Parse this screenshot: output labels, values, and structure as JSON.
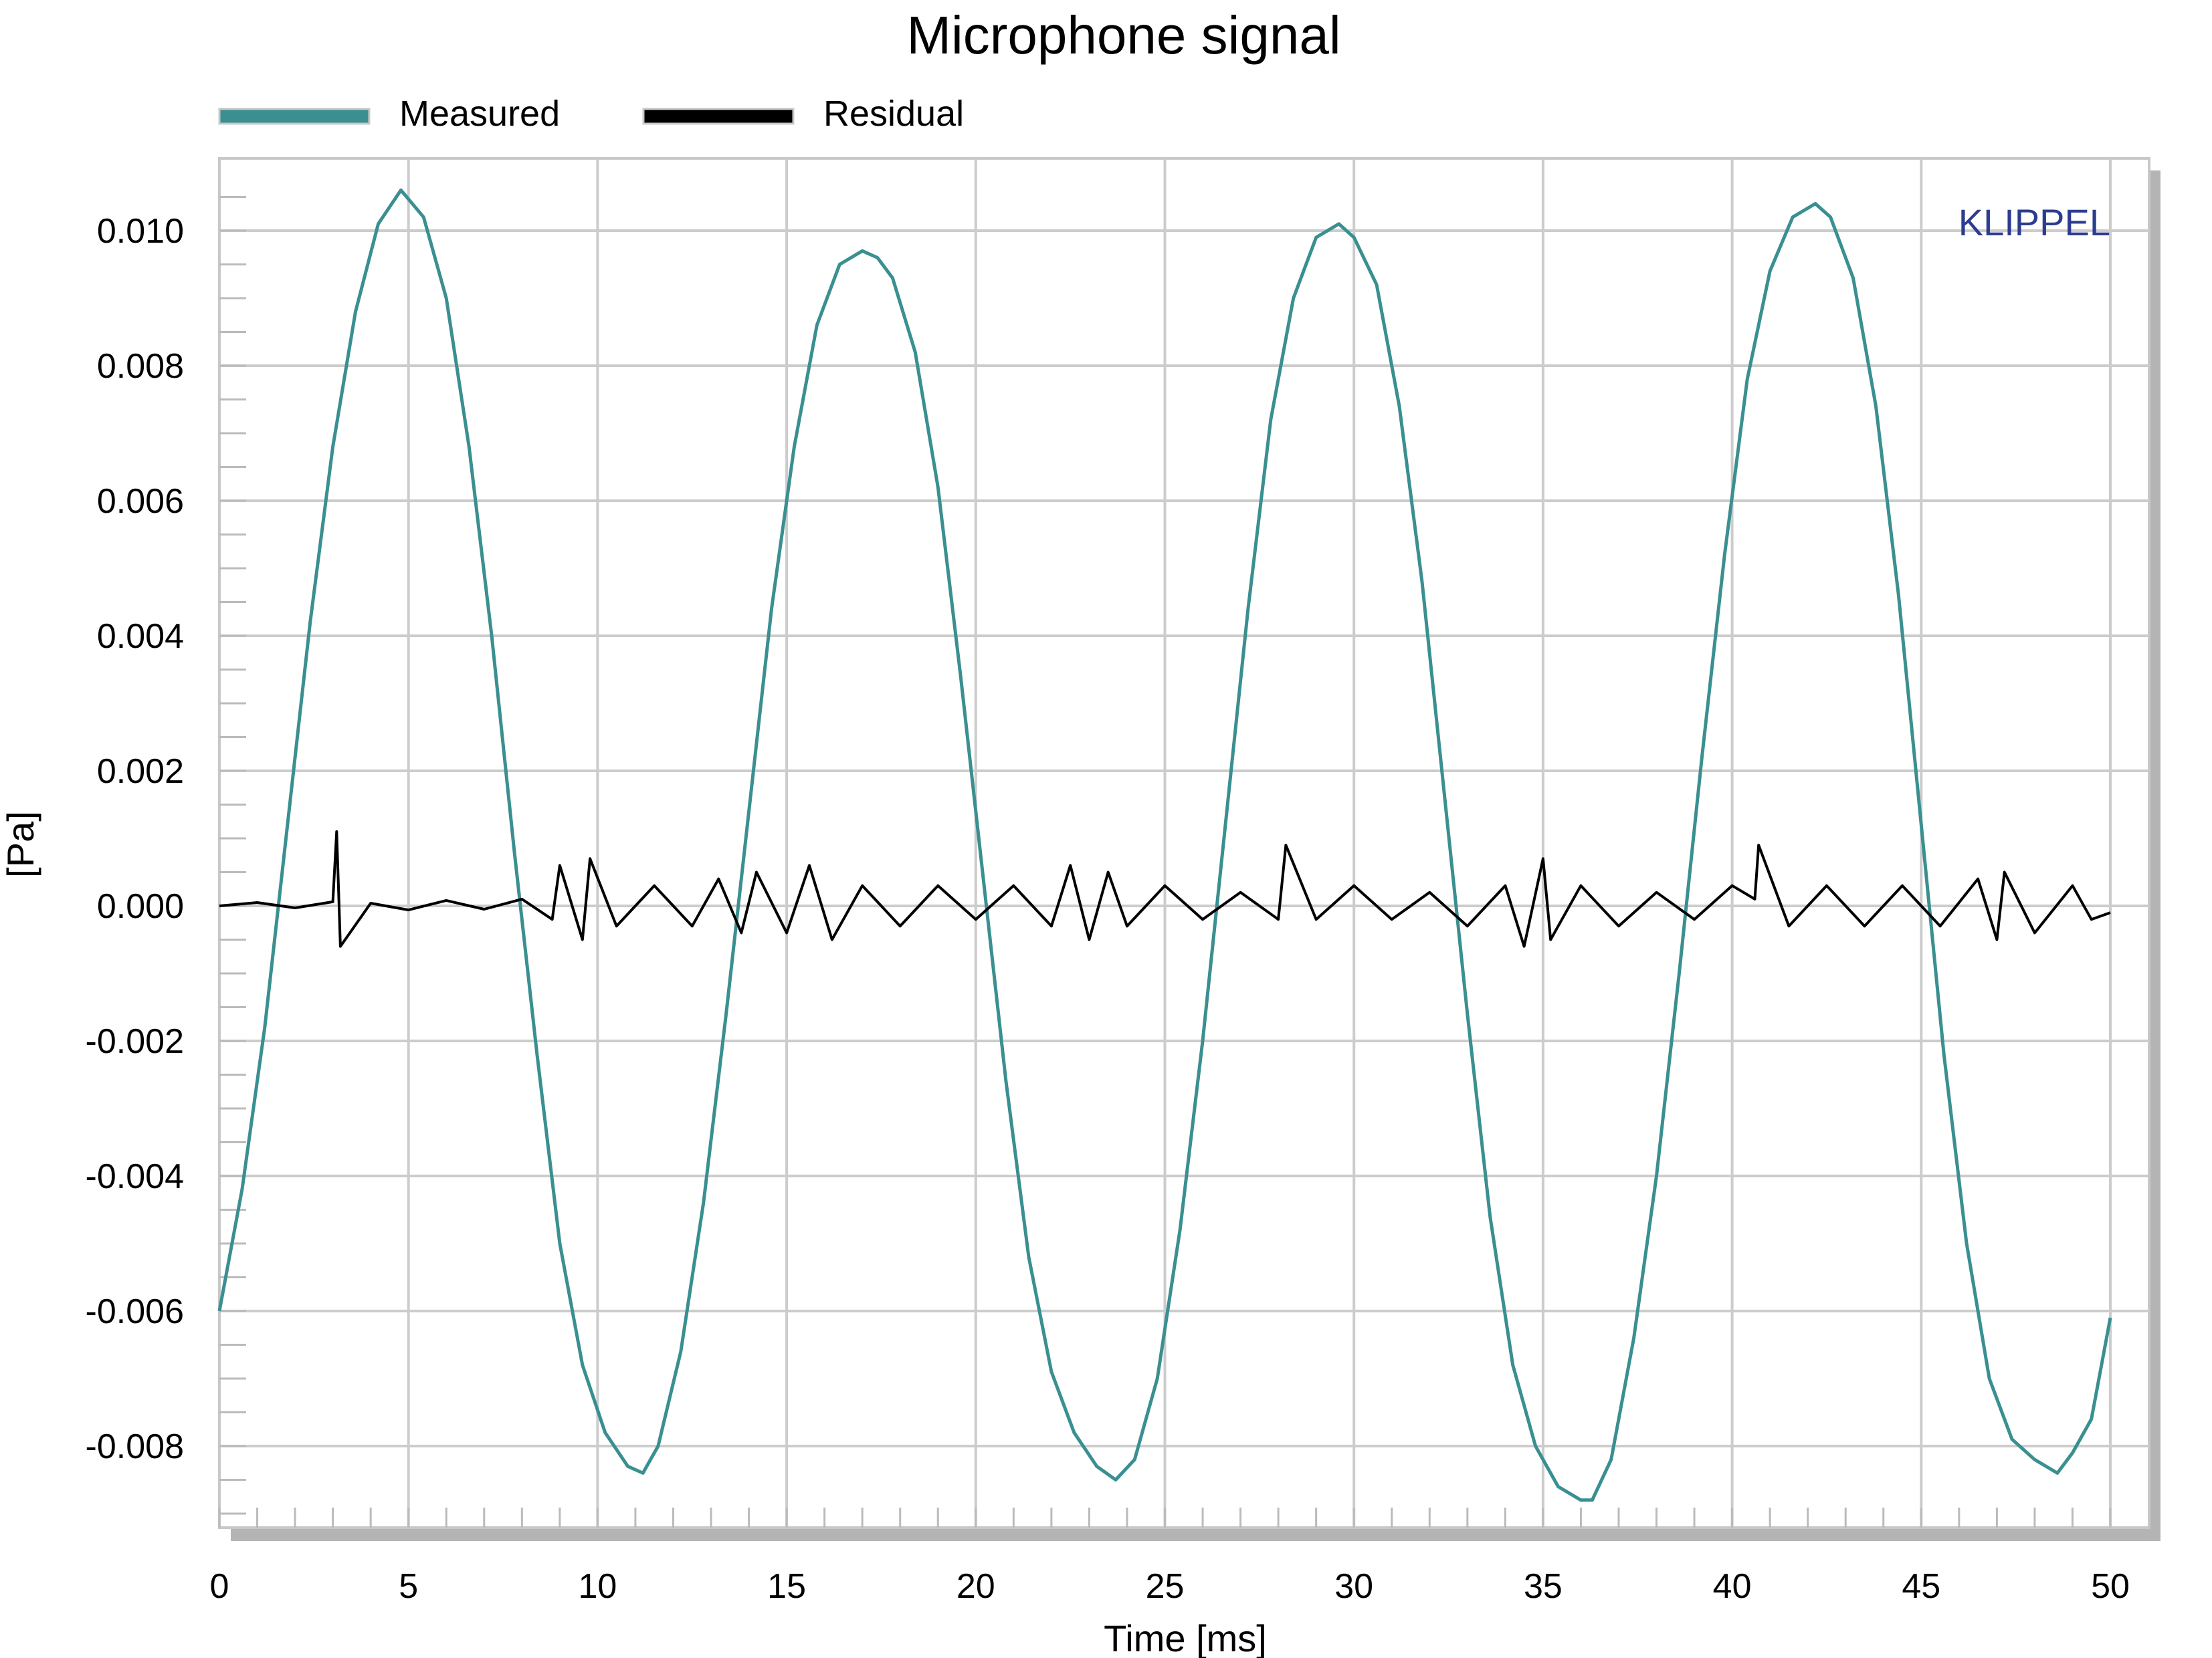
{
  "chart_data": {
    "type": "line",
    "title": "Microphone signal",
    "xlabel": "Time [ms]",
    "ylabel": "[Pa]",
    "xlim": [
      0,
      50
    ],
    "ylim": [
      -0.0093,
      0.011
    ],
    "xticks": [
      0,
      5,
      10,
      15,
      20,
      25,
      30,
      35,
      40,
      45,
      50
    ],
    "xtick_labels": [
      "0",
      "5",
      "10",
      "15",
      "20",
      "25",
      "30",
      "35",
      "40",
      "45",
      "50"
    ],
    "yticks": [
      -0.008,
      -0.006,
      -0.004,
      -0.002,
      0,
      0.002,
      0.004,
      0.006,
      0.008,
      0.01
    ],
    "ytick_labels": [
      "-0.008",
      "-0.006",
      "-0.004",
      "-0.002",
      "0.000",
      "0.002",
      "0.004",
      "0.006",
      "0.008",
      "0.010"
    ],
    "grid": true,
    "legend_position": "top-left, above plot",
    "watermark": "KLIPPEL",
    "series": [
      {
        "name": "Measured",
        "color": "#3a8f91",
        "x": [
          0,
          0.6,
          1.2,
          1.8,
          2.4,
          3.0,
          3.6,
          4.2,
          4.8,
          5.4,
          6.0,
          6.6,
          7.2,
          7.8,
          8.4,
          9.0,
          9.6,
          10.2,
          10.8,
          11.2,
          11.6,
          12.2,
          12.8,
          13.4,
          14.0,
          14.6,
          15.2,
          15.8,
          16.4,
          17.0,
          17.4,
          17.8,
          18.4,
          19.0,
          19.6,
          20.2,
          20.8,
          21.4,
          22.0,
          22.6,
          23.2,
          23.7,
          24.2,
          24.8,
          25.4,
          26.0,
          26.6,
          27.2,
          27.8,
          28.4,
          29.0,
          29.6,
          30.0,
          30.6,
          31.2,
          31.8,
          32.4,
          33.0,
          33.6,
          34.2,
          34.8,
          35.4,
          36.0,
          36.3,
          36.8,
          37.4,
          38.0,
          38.6,
          39.2,
          39.8,
          40.4,
          41.0,
          41.6,
          42.2,
          42.6,
          43.2,
          43.8,
          44.4,
          45.0,
          45.6,
          46.2,
          46.8,
          47.4,
          48.0,
          48.6,
          49.0,
          49.5,
          50.0
        ],
        "y": [
          -0.006,
          -0.0042,
          -0.0018,
          0.0012,
          0.0042,
          0.0068,
          0.0088,
          0.0101,
          0.0106,
          0.0102,
          0.009,
          0.0068,
          0.004,
          0.0008,
          -0.0022,
          -0.005,
          -0.0068,
          -0.0078,
          -0.0083,
          -0.0084,
          -0.008,
          -0.0066,
          -0.0044,
          -0.0016,
          0.0014,
          0.0044,
          0.0068,
          0.0086,
          0.0095,
          0.0097,
          0.0096,
          0.0093,
          0.0082,
          0.0062,
          0.0034,
          0.0004,
          -0.0026,
          -0.0052,
          -0.0069,
          -0.0078,
          -0.0083,
          -0.0085,
          -0.0082,
          -0.007,
          -0.0048,
          -0.002,
          0.0012,
          0.0044,
          0.0072,
          0.009,
          0.0099,
          0.0101,
          0.0099,
          0.0092,
          0.0074,
          0.0048,
          0.0016,
          -0.0016,
          -0.0046,
          -0.0068,
          -0.008,
          -0.0086,
          -0.0088,
          -0.0088,
          -0.0082,
          -0.0064,
          -0.004,
          -0.001,
          0.0022,
          0.0052,
          0.0078,
          0.0094,
          0.0102,
          0.0104,
          0.0102,
          0.0093,
          0.0074,
          0.0046,
          0.0012,
          -0.0022,
          -0.005,
          -0.007,
          -0.0079,
          -0.0082,
          -0.0084,
          -0.0081,
          -0.0076,
          -0.0061
        ]
      },
      {
        "name": "Residual",
        "color": "#000000",
        "x": [
          0,
          1,
          2,
          3,
          3.1,
          3.2,
          4,
          5,
          6,
          7,
          8,
          8.8,
          9,
          9.6,
          9.8,
          10.5,
          11.5,
          12.5,
          13.2,
          13.8,
          14.2,
          15.0,
          15.6,
          16.2,
          17.0,
          18.0,
          19.0,
          20.0,
          21.0,
          22.0,
          22.5,
          23.0,
          23.5,
          24.0,
          25.0,
          26.0,
          27.0,
          28.0,
          28.2,
          29.0,
          30.0,
          31.0,
          32.0,
          33.0,
          34.0,
          34.5,
          35.0,
          35.2,
          36.0,
          37.0,
          38.0,
          39.0,
          40.0,
          40.6,
          40.7,
          41.5,
          42.5,
          43.5,
          44.5,
          45.5,
          46.5,
          47.0,
          47.2,
          48.0,
          49.0,
          49.5,
          50.0
        ],
        "y": [
          0.0,
          5e-05,
          -3e-05,
          6e-05,
          0.0011,
          -0.0006,
          4e-05,
          -6e-05,
          8e-05,
          -5e-05,
          0.0001,
          -0.0002,
          0.0006,
          -0.0005,
          0.0007,
          -0.0003,
          0.0003,
          -0.0003,
          0.0004,
          -0.0004,
          0.0005,
          -0.0004,
          0.0006,
          -0.0005,
          0.0003,
          -0.0003,
          0.0003,
          -0.0002,
          0.0003,
          -0.0003,
          0.0006,
          -0.0005,
          0.0005,
          -0.0003,
          0.0003,
          -0.0002,
          0.0002,
          -0.0002,
          0.0009,
          -0.0002,
          0.0003,
          -0.0002,
          0.0002,
          -0.0003,
          0.0003,
          -0.0006,
          0.0007,
          -0.0005,
          0.0003,
          -0.0003,
          0.0002,
          -0.0002,
          0.0003,
          0.0001,
          0.0009,
          -0.0003,
          0.0003,
          -0.0003,
          0.0003,
          -0.0003,
          0.0004,
          -0.0005,
          0.0005,
          -0.0004,
          0.0003,
          -0.0002,
          -0.0001
        ]
      }
    ]
  }
}
